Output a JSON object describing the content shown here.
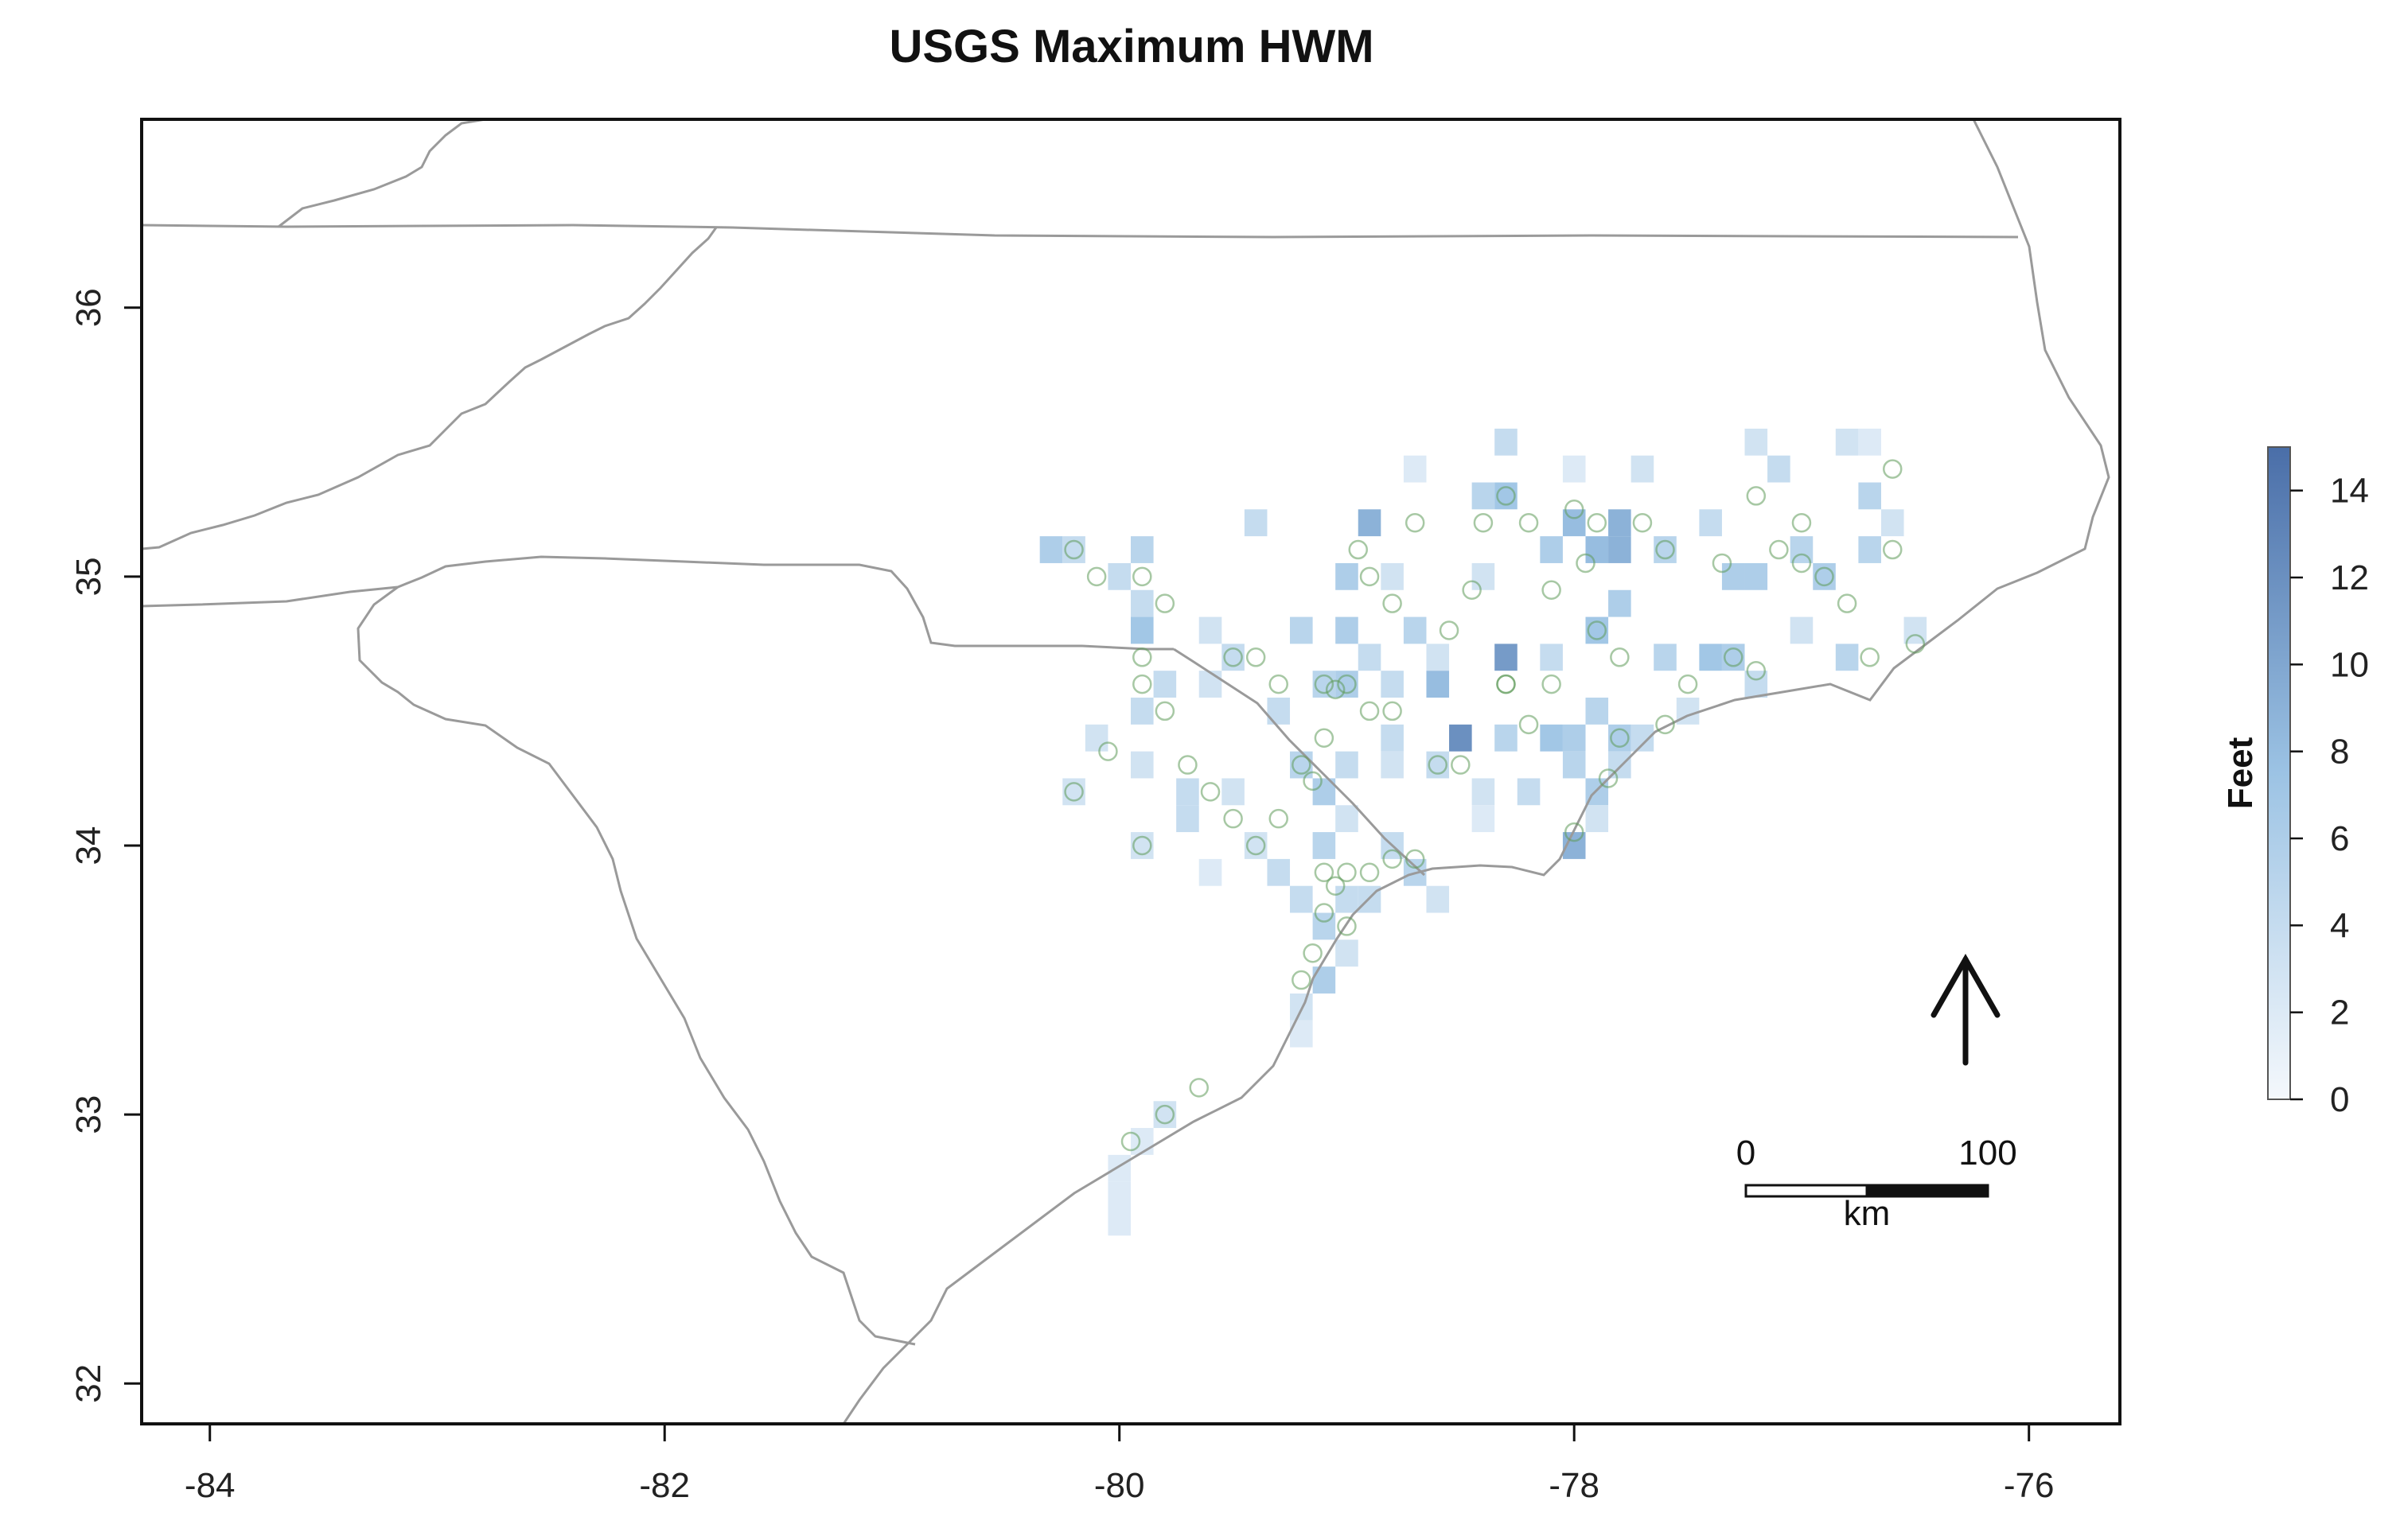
{
  "chart_data": {
    "type": "heatmap",
    "title": "USGS Maximum HWM",
    "xlim": [
      -84.3,
      -75.6
    ],
    "ylim": [
      31.85,
      36.7
    ],
    "x_ticks": [
      -84,
      -82,
      -80,
      -78,
      -76
    ],
    "y_ticks": [
      32,
      33,
      34,
      35,
      36
    ],
    "colorbar": {
      "title": "Feet",
      "min": 0,
      "max": 15,
      "ticks": [
        0,
        2,
        4,
        6,
        8,
        10,
        12,
        14
      ],
      "low_color": "#f4f8fc",
      "high_color": "#4a6ea8"
    },
    "cell_size_deg": [
      0.1,
      0.1
    ],
    "cells": [
      [
        -78.3,
        35.5,
        4
      ],
      [
        -78.0,
        35.4,
        2
      ],
      [
        -77.7,
        35.4,
        3
      ],
      [
        -77.2,
        35.5,
        3
      ],
      [
        -76.8,
        35.5,
        3
      ],
      [
        -76.7,
        35.5,
        2
      ],
      [
        -78.7,
        35.4,
        2
      ],
      [
        -77.1,
        35.4,
        4
      ],
      [
        -78.4,
        35.3,
        5
      ],
      [
        -78.3,
        35.3,
        7
      ],
      [
        -78.0,
        35.2,
        8
      ],
      [
        -77.8,
        35.2,
        9
      ],
      [
        -77.4,
        35.2,
        4
      ],
      [
        -76.7,
        35.3,
        5
      ],
      [
        -78.9,
        35.2,
        9
      ],
      [
        -79.4,
        35.2,
        4
      ],
      [
        -80.3,
        35.1,
        6
      ],
      [
        -80.2,
        35.1,
        4
      ],
      [
        -79.9,
        35.1,
        5
      ],
      [
        -79.0,
        35.0,
        6
      ],
      [
        -78.8,
        35.0,
        3
      ],
      [
        -78.4,
        35.0,
        3
      ],
      [
        -78.1,
        35.1,
        6
      ],
      [
        -77.9,
        35.1,
        8
      ],
      [
        -77.8,
        35.1,
        9
      ],
      [
        -77.6,
        35.1,
        5
      ],
      [
        -77.3,
        35.0,
        6
      ],
      [
        -77.2,
        35.0,
        6
      ],
      [
        -77.0,
        35.1,
        5
      ],
      [
        -76.9,
        35.0,
        6
      ],
      [
        -76.7,
        35.1,
        5
      ],
      [
        -76.6,
        35.2,
        3
      ],
      [
        -80.0,
        35.0,
        4
      ],
      [
        -79.9,
        34.9,
        4
      ],
      [
        -79.6,
        34.8,
        3
      ],
      [
        -79.5,
        34.7,
        4
      ],
      [
        -79.2,
        34.8,
        5
      ],
      [
        -79.0,
        34.8,
        6
      ],
      [
        -78.9,
        34.7,
        4
      ],
      [
        -78.7,
        34.8,
        5
      ],
      [
        -78.6,
        34.7,
        3
      ],
      [
        -78.3,
        34.7,
        11
      ],
      [
        -78.1,
        34.7,
        4
      ],
      [
        -77.9,
        34.8,
        7
      ],
      [
        -77.8,
        34.9,
        6
      ],
      [
        -77.6,
        34.7,
        5
      ],
      [
        -77.4,
        34.7,
        7
      ],
      [
        -77.3,
        34.7,
        6
      ],
      [
        -77.2,
        34.6,
        4
      ],
      [
        -77.0,
        34.8,
        3
      ],
      [
        -76.8,
        34.7,
        5
      ],
      [
        -76.5,
        34.8,
        3
      ],
      [
        -79.9,
        34.8,
        7
      ],
      [
        -79.8,
        34.6,
        4
      ],
      [
        -79.9,
        34.5,
        4
      ],
      [
        -79.6,
        34.6,
        3
      ],
      [
        -79.3,
        34.5,
        4
      ],
      [
        -79.1,
        34.6,
        5
      ],
      [
        -79.0,
        34.6,
        6
      ],
      [
        -78.8,
        34.6,
        4
      ],
      [
        -78.6,
        34.6,
        8
      ],
      [
        -78.8,
        34.4,
        4
      ],
      [
        -78.5,
        34.4,
        12
      ],
      [
        -78.3,
        34.4,
        5
      ],
      [
        -78.1,
        34.4,
        7
      ],
      [
        -78.0,
        34.4,
        6
      ],
      [
        -77.8,
        34.4,
        6
      ],
      [
        -77.9,
        34.5,
        5
      ],
      [
        -77.7,
        34.4,
        4
      ],
      [
        -77.5,
        34.5,
        3
      ],
      [
        -80.1,
        34.4,
        3
      ],
      [
        -79.9,
        34.3,
        3
      ],
      [
        -79.7,
        34.2,
        4
      ],
      [
        -79.5,
        34.2,
        3
      ],
      [
        -79.2,
        34.3,
        5
      ],
      [
        -79.1,
        34.2,
        6
      ],
      [
        -79.0,
        34.3,
        4
      ],
      [
        -78.8,
        34.3,
        3
      ],
      [
        -78.6,
        34.3,
        4
      ],
      [
        -78.4,
        34.2,
        3
      ],
      [
        -78.2,
        34.2,
        4
      ],
      [
        -78.0,
        34.3,
        5
      ],
      [
        -77.9,
        34.2,
        6
      ],
      [
        -77.8,
        34.3,
        4
      ],
      [
        -80.2,
        34.2,
        3
      ],
      [
        -79.9,
        34.0,
        3
      ],
      [
        -79.7,
        34.1,
        4
      ],
      [
        -79.6,
        33.9,
        2
      ],
      [
        -79.4,
        34.0,
        3
      ],
      [
        -79.3,
        33.9,
        4
      ],
      [
        -79.1,
        34.0,
        5
      ],
      [
        -79.0,
        34.1,
        3
      ],
      [
        -78.8,
        34.0,
        4
      ],
      [
        -78.7,
        33.9,
        5
      ],
      [
        -78.6,
        33.8,
        3
      ],
      [
        -78.4,
        34.1,
        2
      ],
      [
        -78.0,
        34.0,
        9
      ],
      [
        -77.9,
        34.1,
        3
      ],
      [
        -79.2,
        33.8,
        4
      ],
      [
        -79.1,
        33.7,
        5
      ],
      [
        -79.0,
        33.8,
        4
      ],
      [
        -78.9,
        33.8,
        4
      ],
      [
        -79.0,
        33.6,
        3
      ],
      [
        -79.1,
        33.5,
        6
      ],
      [
        -79.2,
        33.4,
        3
      ],
      [
        -79.2,
        33.3,
        2
      ],
      [
        -79.8,
        33.0,
        3
      ],
      [
        -79.9,
        32.9,
        2
      ],
      [
        -80.0,
        32.8,
        2
      ],
      [
        -80.0,
        32.7,
        2
      ],
      [
        -80.0,
        32.6,
        2
      ]
    ],
    "points": [
      [
        -80.2,
        35.1
      ],
      [
        -80.1,
        35.0
      ],
      [
        -79.9,
        35.0
      ],
      [
        -79.8,
        34.9
      ],
      [
        -79.9,
        34.7
      ],
      [
        -79.9,
        34.6
      ],
      [
        -79.8,
        34.5
      ],
      [
        -79.5,
        34.7
      ],
      [
        -79.4,
        34.7
      ],
      [
        -79.3,
        34.6
      ],
      [
        -79.1,
        34.6
      ],
      [
        -79.05,
        34.58
      ],
      [
        -79.0,
        34.6
      ],
      [
        -78.9,
        34.5
      ],
      [
        -78.95,
        35.1
      ],
      [
        -78.9,
        35.0
      ],
      [
        -78.8,
        34.9
      ],
      [
        -78.7,
        35.2
      ],
      [
        -78.3,
        35.3
      ],
      [
        -78.4,
        35.2
      ],
      [
        -78.2,
        35.2
      ],
      [
        -78.0,
        35.25
      ],
      [
        -77.9,
        35.2
      ],
      [
        -77.7,
        35.2
      ],
      [
        -77.6,
        35.1
      ],
      [
        -77.1,
        35.1
      ],
      [
        -77.0,
        35.05
      ],
      [
        -76.9,
        35.0
      ],
      [
        -76.6,
        35.4
      ],
      [
        -76.6,
        35.1
      ],
      [
        -77.3,
        34.7
      ],
      [
        -77.2,
        34.65
      ],
      [
        -77.5,
        34.6
      ],
      [
        -77.8,
        34.7
      ],
      [
        -77.9,
        34.8
      ],
      [
        -78.1,
        34.6
      ],
      [
        -78.3,
        34.6
      ],
      [
        -78.5,
        34.3
      ],
      [
        -78.6,
        34.3
      ],
      [
        -78.8,
        34.5
      ],
      [
        -79.1,
        34.4
      ],
      [
        -79.2,
        34.3
      ],
      [
        -79.15,
        34.24
      ],
      [
        -79.3,
        34.1
      ],
      [
        -79.4,
        34.0
      ],
      [
        -79.5,
        34.1
      ],
      [
        -79.6,
        34.2
      ],
      [
        -79.7,
        34.3
      ],
      [
        -79.9,
        34.0
      ],
      [
        -80.2,
        34.2
      ],
      [
        -80.05,
        34.35
      ],
      [
        -79.1,
        33.9
      ],
      [
        -79.05,
        33.85
      ],
      [
        -79.0,
        33.9
      ],
      [
        -78.9,
        33.9
      ],
      [
        -78.8,
        33.95
      ],
      [
        -78.7,
        33.95
      ],
      [
        -79.1,
        33.75
      ],
      [
        -79.0,
        33.7
      ],
      [
        -79.15,
        33.6
      ],
      [
        -79.2,
        33.5
      ],
      [
        -78.0,
        34.05
      ],
      [
        -77.85,
        34.25
      ],
      [
        -77.8,
        34.4
      ],
      [
        -78.2,
        34.45
      ],
      [
        -78.3,
        34.6
      ],
      [
        -77.6,
        34.45
      ],
      [
        -76.8,
        34.9
      ],
      [
        -76.7,
        34.7
      ],
      [
        -76.5,
        34.75
      ],
      [
        -79.8,
        33.0
      ],
      [
        -79.65,
        33.1
      ],
      [
        -79.95,
        32.9
      ],
      [
        -78.55,
        34.8
      ],
      [
        -78.45,
        34.95
      ],
      [
        -78.1,
        34.95
      ],
      [
        -77.95,
        35.05
      ],
      [
        -77.35,
        35.05
      ],
      [
        -77.2,
        35.3
      ],
      [
        -77.0,
        35.2
      ]
    ],
    "scalebar": {
      "labels": [
        "0",
        "100"
      ],
      "unit": "km"
    },
    "north_arrow": true
  }
}
